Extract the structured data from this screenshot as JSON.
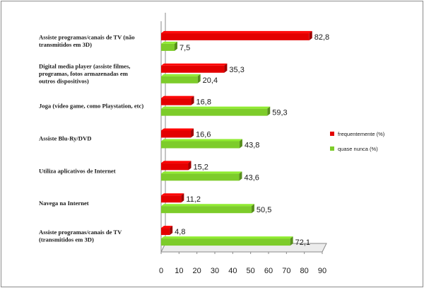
{
  "chart_data": {
    "type": "bar",
    "orientation": "horizontal",
    "categories": [
      "Assiste programas/canais de TV (não transmitidos em 3D)",
      "Digital media player (assiste filmes, programas, fotos armazenadas em outros dispositivos)",
      "Joga (vídeo game, como Playstation, etc)",
      "Assiste Blu-Ry/DVD",
      "Utiliza aplicativos de Internet",
      "Navega na Internet",
      "Assiste programas/canais de TV (transmitidos em 3D)"
    ],
    "category_lines": [
      [
        "Assiste programas/canais de TV (não",
        "transmitidos em 3D)"
      ],
      [
        "Digital media player (assiste filmes,",
        "programas, fotos armazenadas em",
        "outros dispositivos)"
      ],
      [
        "Joga (vídeo game, como Playstation, etc)"
      ],
      [
        "Assiste Blu-Ry/DVD"
      ],
      [
        "Utiliza aplicativos de Internet"
      ],
      [
        "Navega na Internet"
      ],
      [
        "Assiste programas/canais de TV",
        "(transmitidos em 3D)"
      ]
    ],
    "series": [
      {
        "name": "frequentemente (%)",
        "color": "#e30000",
        "values": [
          82.8,
          35.3,
          16.8,
          16.6,
          15.2,
          11.2,
          4.8
        ],
        "labels": [
          "82,8",
          "35,3",
          "16,8",
          "16,6",
          "15,2",
          "11,2",
          "4,8"
        ]
      },
      {
        "name": "quase nunca (%)",
        "color": "#7dcc2a",
        "values": [
          7.5,
          20.4,
          59.3,
          43.8,
          43.6,
          50.5,
          72.1
        ],
        "labels": [
          "7,5",
          "20,4",
          "59,3",
          "43,8",
          "43,6",
          "50,5",
          "72,1"
        ]
      }
    ],
    "xlim": [
      0,
      90
    ],
    "xticks": [
      "0",
      "10",
      "20",
      "30",
      "40",
      "50",
      "60",
      "70",
      "80",
      "90"
    ],
    "grid": false,
    "legend_position": "right",
    "title": "",
    "xlabel": "",
    "ylabel": ""
  }
}
